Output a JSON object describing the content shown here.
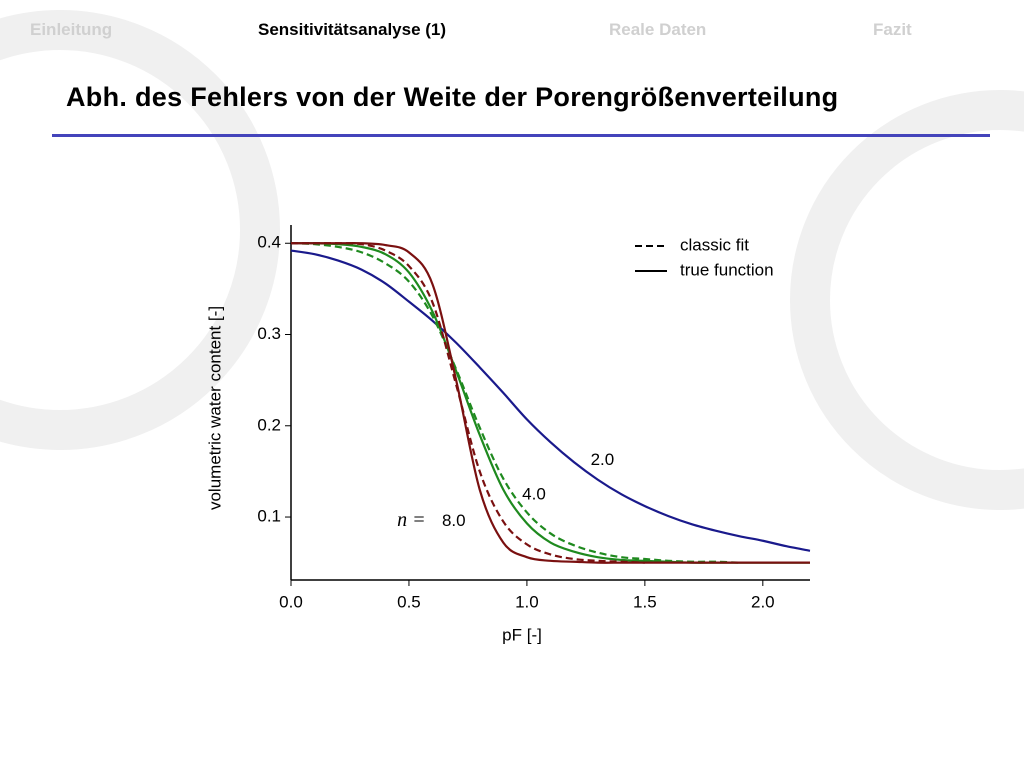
{
  "nav": {
    "items": [
      "Einleitung",
      "Sensitivitätsanalyse (1)",
      "Reale Daten",
      "Fazit"
    ],
    "active": 1
  },
  "header": {
    "title": "Abh. des Fehlers von der Weite der Porengrößenverteilung"
  },
  "chart_data": {
    "type": "line",
    "xlabel": "pF [-]",
    "ylabel": "volumetric water content [-]",
    "x": [
      0,
      0.1,
      0.2,
      0.3,
      0.4,
      0.5,
      0.6,
      0.7,
      0.8,
      0.9,
      1.0,
      1.1,
      1.2,
      1.3,
      1.4,
      1.5,
      1.6,
      1.7,
      1.8,
      1.9,
      2.0,
      2.1,
      2.2
    ],
    "xlim": [
      0,
      2.2
    ],
    "ylim": [
      0.031,
      0.42
    ],
    "xticks": [
      {
        "value": 0,
        "label": "0.0"
      },
      {
        "value": 0.5,
        "label": "0.5"
      },
      {
        "value": 1,
        "label": "1.0"
      },
      {
        "value": 1.5,
        "label": "1.5"
      },
      {
        "value": 2,
        "label": "2.0"
      }
    ],
    "yticks": [
      0.1,
      0.2,
      0.3,
      0.4
    ],
    "legend_position": "top right",
    "legend": [
      {
        "label": "classic fit",
        "dashed": true
      },
      {
        "label": "true function",
        "dashed": false
      }
    ],
    "series": [
      {
        "color": "#1a1a8c",
        "dashed": false,
        "values": [
          0.392,
          0.388,
          0.381,
          0.371,
          0.356,
          0.336,
          0.315,
          0.291,
          0.264,
          0.236,
          0.207,
          0.182,
          0.16,
          0.141,
          0.125,
          0.112,
          0.101,
          0.092,
          0.085,
          0.079,
          0.074,
          0.068,
          0.063
        ]
      },
      {
        "color": "#1f8a1f",
        "dashed": false,
        "values": [
          0.4,
          0.4,
          0.399,
          0.396,
          0.388,
          0.368,
          0.325,
          0.26,
          0.19,
          0.13,
          0.093,
          0.072,
          0.062,
          0.056,
          0.053,
          0.052,
          0.051,
          0.05,
          0.05,
          0.05,
          0.05,
          0.05,
          0.05
        ]
      },
      {
        "color": "#1f8a1f",
        "dashed": true,
        "values": [
          0.4,
          0.399,
          0.396,
          0.39,
          0.378,
          0.358,
          0.32,
          0.262,
          0.198,
          0.142,
          0.105,
          0.082,
          0.069,
          0.061,
          0.056,
          0.054,
          0.052,
          0.051,
          0.051,
          0.05,
          null,
          null,
          null
        ]
      },
      {
        "color": "#7a1010",
        "dashed": false,
        "values": [
          0.4,
          0.4,
          0.4,
          0.4,
          0.398,
          0.39,
          0.355,
          0.25,
          0.13,
          0.072,
          0.056,
          0.052,
          0.051,
          0.05,
          0.05,
          0.05,
          0.05,
          0.05,
          0.05,
          0.05,
          0.05,
          0.05,
          0.05
        ]
      },
      {
        "color": "#7a1010",
        "dashed": true,
        "values": [
          0.4,
          0.4,
          0.4,
          0.399,
          0.392,
          0.375,
          0.335,
          0.245,
          0.15,
          0.095,
          0.07,
          0.059,
          0.054,
          0.052,
          0.051,
          0.05,
          null,
          null,
          null,
          null,
          null,
          null,
          null
        ]
      }
    ],
    "annotations": [
      {
        "text": "2.0",
        "x": 1.32,
        "y": 0.162,
        "italic": false
      },
      {
        "text": "4.0",
        "x": 1.03,
        "y": 0.124,
        "italic": false
      },
      {
        "text": "n =",
        "x": 0.51,
        "y": 0.095,
        "italic": true
      },
      {
        "text": "8.0",
        "x": 0.69,
        "y": 0.095,
        "italic": false
      }
    ]
  }
}
